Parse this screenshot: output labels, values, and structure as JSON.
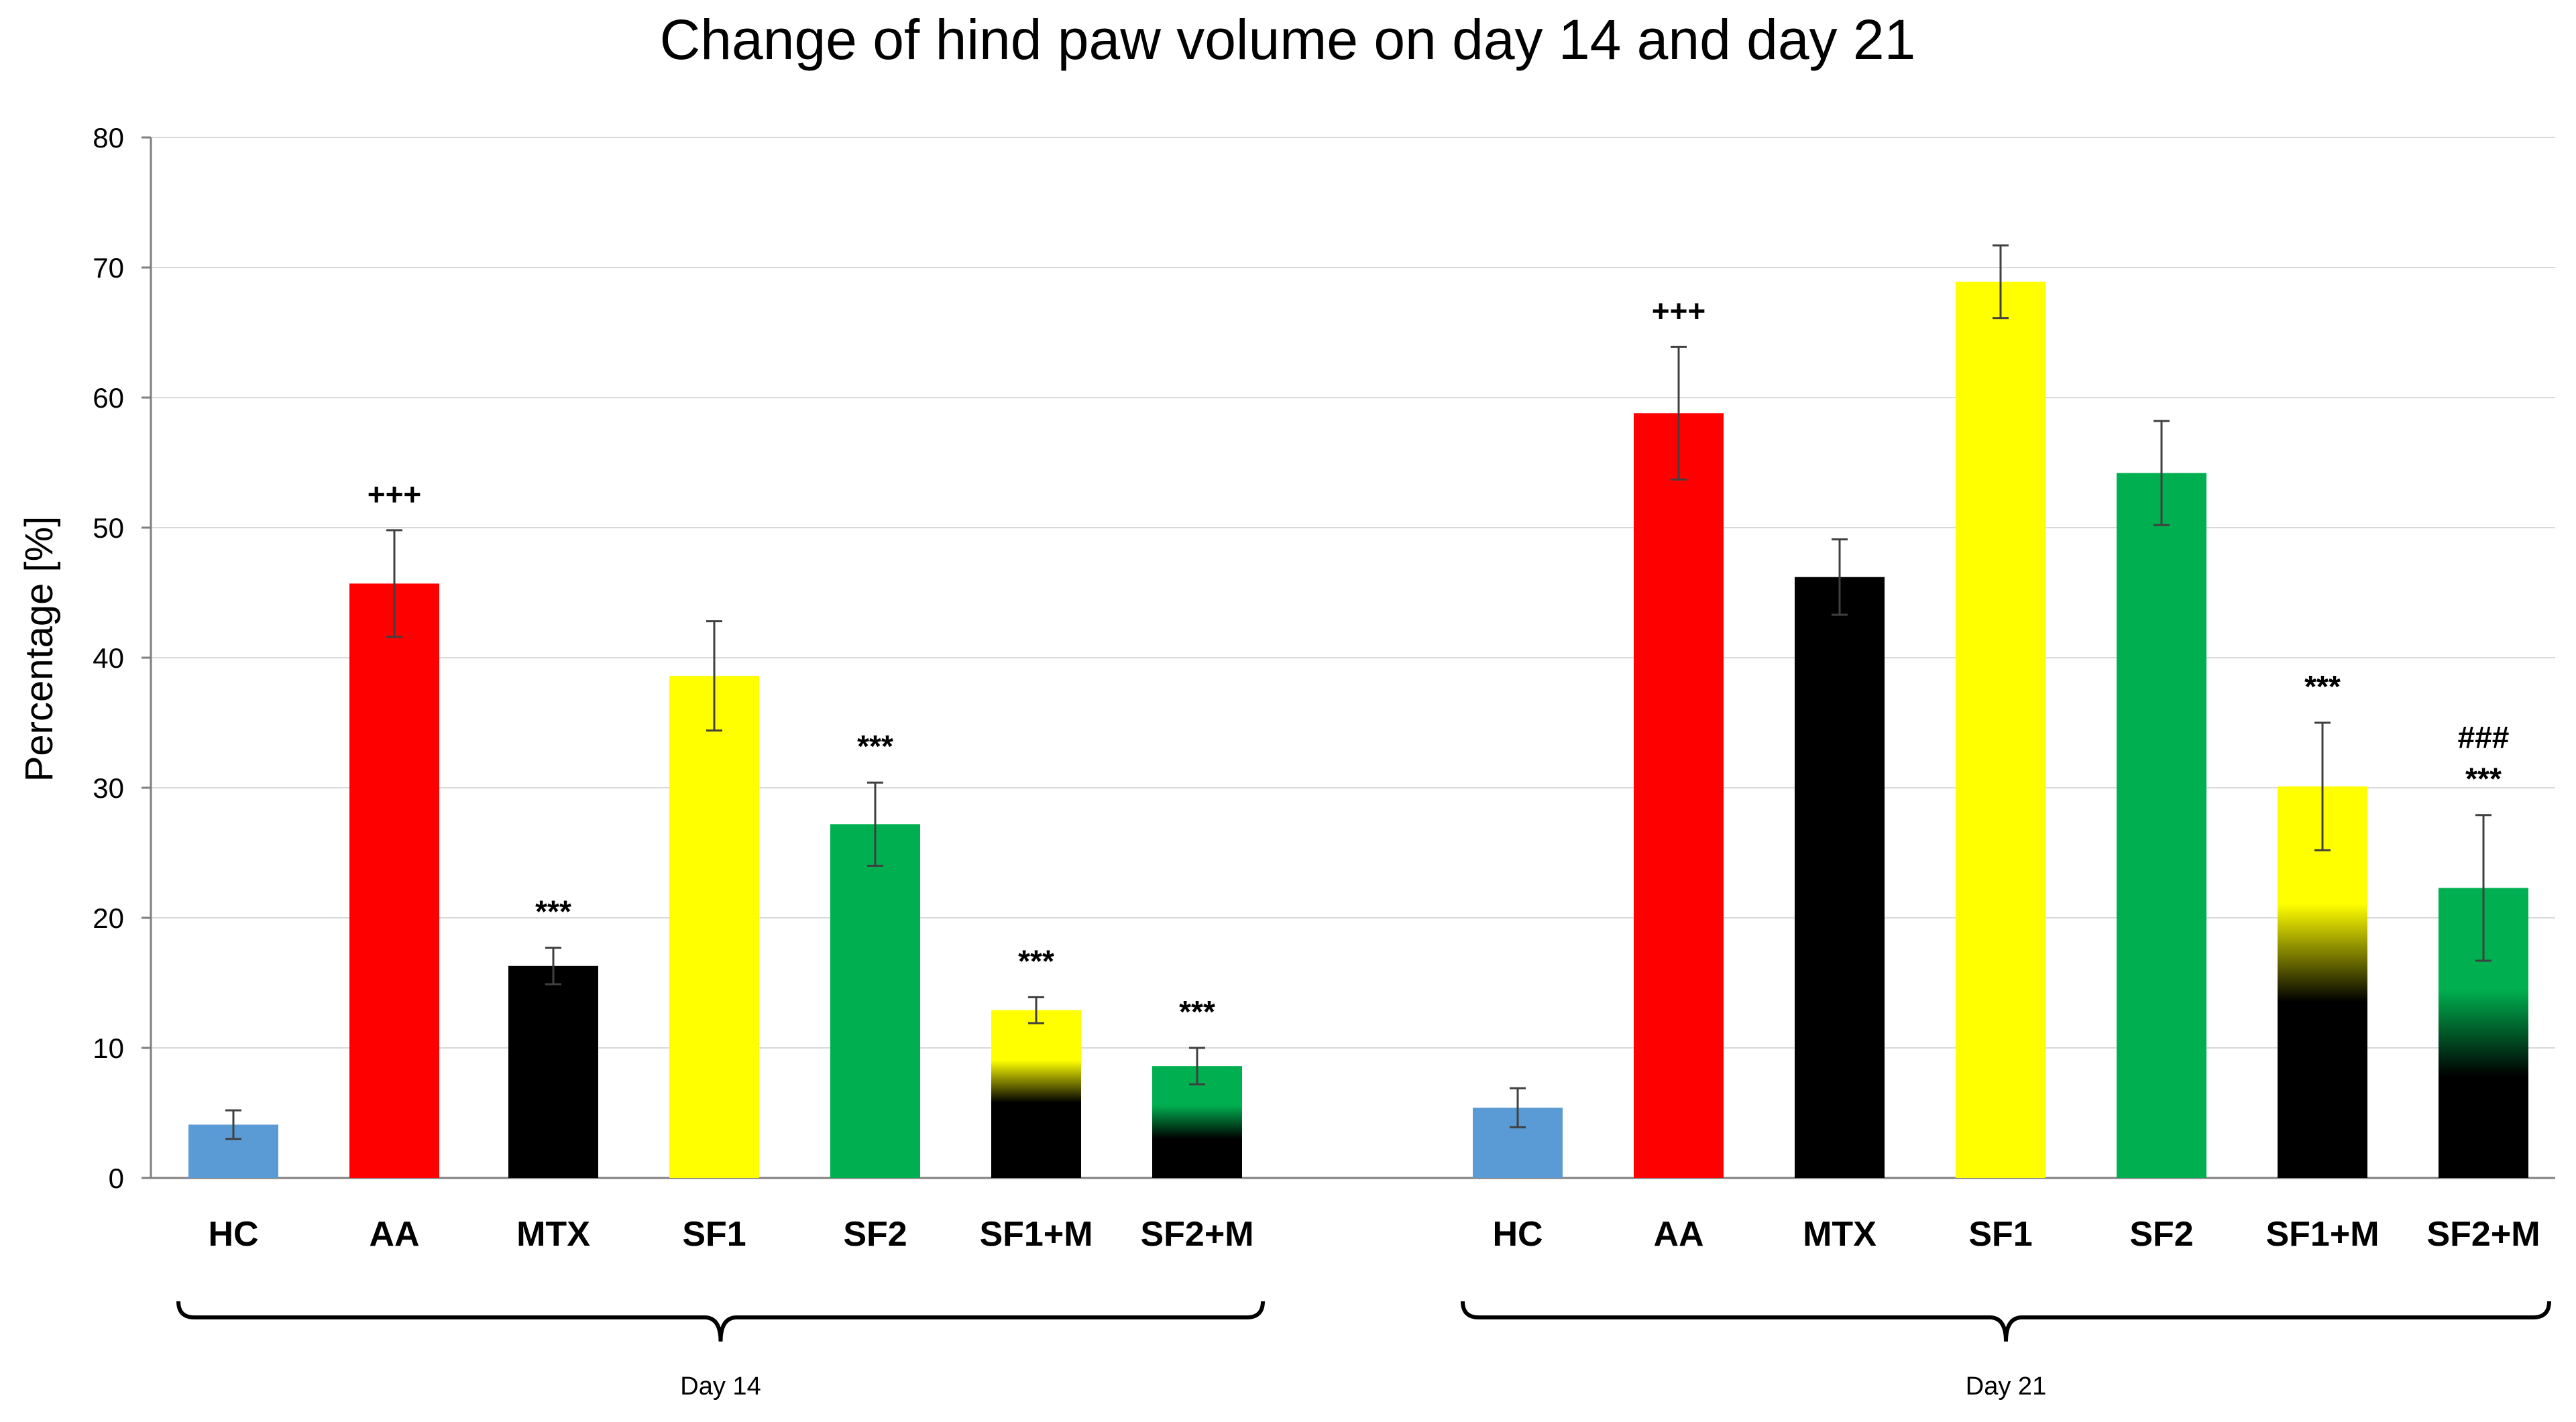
{
  "chart_data": {
    "type": "bar",
    "title": "Change of hind paw volume on day 14 and day 21",
    "ylabel": "Percentage [%]",
    "xlabel": "",
    "ylim": [
      0,
      80
    ],
    "yticks": [
      0,
      10,
      20,
      30,
      40,
      50,
      60,
      70,
      80
    ],
    "grid": true,
    "groups": [
      {
        "label": "Day 14",
        "bars": [
          {
            "category": "HC",
            "value": 4.1,
            "error": 1.1,
            "fill": "blue",
            "annotations": []
          },
          {
            "category": "AA",
            "value": 45.7,
            "error": 4.1,
            "fill": "red",
            "annotations": [
              "+++"
            ]
          },
          {
            "category": "MTX",
            "value": 16.3,
            "error": 1.4,
            "fill": "black",
            "annotations": [
              "***"
            ]
          },
          {
            "category": "SF1",
            "value": 38.6,
            "error": 4.2,
            "fill": "yellow",
            "annotations": []
          },
          {
            "category": "SF2",
            "value": 27.2,
            "error": 3.2,
            "fill": "green",
            "annotations": [
              "***"
            ]
          },
          {
            "category": "SF1+M",
            "value": 12.9,
            "error": 1.0,
            "fill": "yellow-black",
            "annotations": [
              "***"
            ]
          },
          {
            "category": "SF2+M",
            "value": 8.6,
            "error": 1.4,
            "fill": "green-black",
            "annotations": [
              "***"
            ]
          }
        ]
      },
      {
        "label": "Day 21",
        "bars": [
          {
            "category": "HC",
            "value": 5.4,
            "error": 1.5,
            "fill": "blue",
            "annotations": []
          },
          {
            "category": "AA",
            "value": 58.8,
            "error": 5.1,
            "fill": "red",
            "annotations": [
              "+++"
            ]
          },
          {
            "category": "MTX",
            "value": 46.2,
            "error": 2.9,
            "fill": "black",
            "annotations": []
          },
          {
            "category": "SF1",
            "value": 68.9,
            "error": 2.8,
            "fill": "yellow",
            "annotations": []
          },
          {
            "category": "SF2",
            "value": 54.2,
            "error": 4.0,
            "fill": "green",
            "annotations": []
          },
          {
            "category": "SF1+M",
            "value": 30.1,
            "error": 4.9,
            "fill": "yellow-black",
            "annotations": [
              "***"
            ]
          },
          {
            "category": "SF2+M",
            "value": 22.3,
            "error": 5.6,
            "fill": "green-black",
            "annotations": [
              "***",
              "###"
            ]
          }
        ]
      }
    ],
    "colors": {
      "blue": "#5b9bd5",
      "red": "#ff0000",
      "black": "#000000",
      "yellow": "#ffff00",
      "green": "#00b050",
      "axis": "#7f7f7f",
      "grid": "#d9d9d9"
    }
  }
}
